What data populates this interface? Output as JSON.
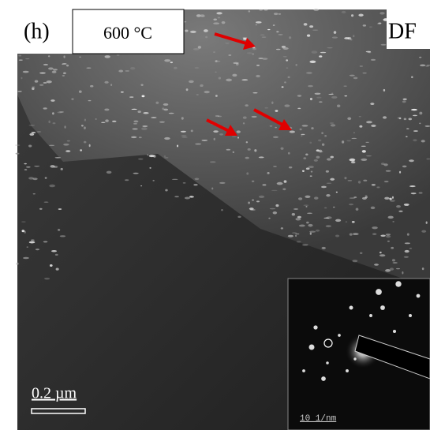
{
  "panel_label": "(h)",
  "temperature": "600 °C",
  "mode": "DF",
  "scale_bar": "0.2 µm",
  "inset": {
    "scale_bar": "10 1/nm"
  }
}
